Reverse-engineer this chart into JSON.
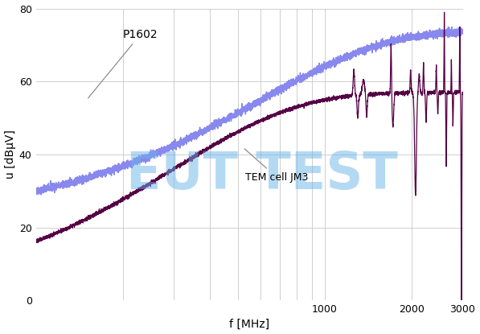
{
  "title": "",
  "xlabel": "f [MHz]",
  "ylabel": "u [dBµV]",
  "xlim": [
    100,
    3000
  ],
  "ylim": [
    0,
    80
  ],
  "yticks": [
    0,
    20,
    40,
    60,
    80
  ],
  "xticks": [
    1000,
    2000,
    3000
  ],
  "xticklabels": [
    "1000",
    "2000",
    "3000"
  ],
  "background_color": "#ffffff",
  "grid_color": "#c8c8c8",
  "label_p1602": "P1602",
  "label_tem": "TEM cell JM3",
  "watermark": "EUT TEST",
  "watermark_color": "#6ab4e8",
  "watermark_alpha": 0.5,
  "line1_color": "#8888ee",
  "line2_color": "#550044"
}
